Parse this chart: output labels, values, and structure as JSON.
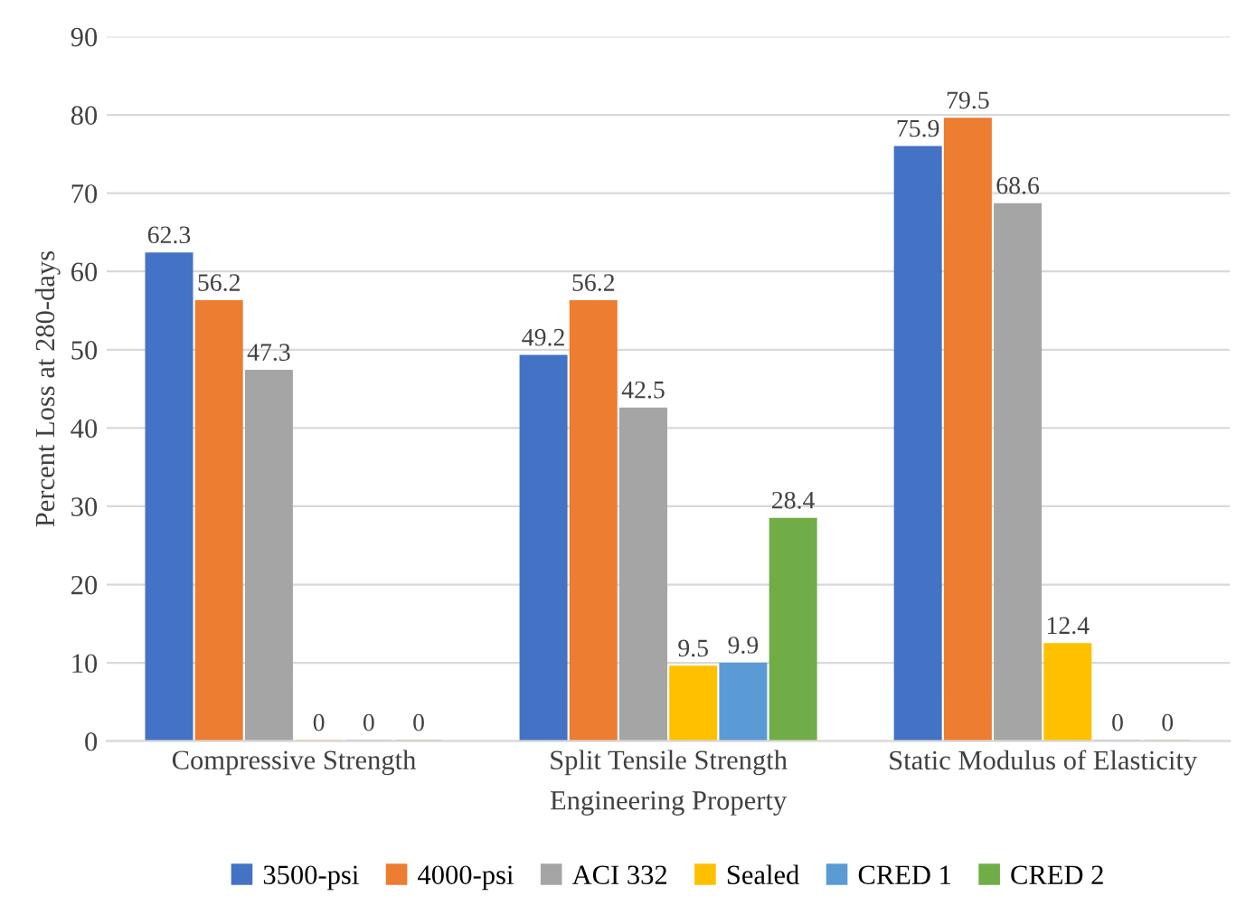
{
  "chart_data": {
    "type": "bar",
    "xlabel": "Engineering Property",
    "ylabel": "Percent Loss at 280-days",
    "categories": [
      "Compressive Strength",
      "Split Tensile Strength",
      "Static Modulus of Elasticity"
    ],
    "series": [
      {
        "name": "3500-psi",
        "color": "#4472c4",
        "values": [
          62.3,
          49.2,
          75.9
        ]
      },
      {
        "name": "4000-psi",
        "color": "#ed7d31",
        "values": [
          56.2,
          56.2,
          79.5
        ]
      },
      {
        "name": "ACI 332",
        "color": "#a5a5a5",
        "values": [
          47.3,
          42.5,
          68.6
        ]
      },
      {
        "name": "Sealed",
        "color": "#ffc000",
        "values": [
          0,
          9.5,
          12.4
        ]
      },
      {
        "name": "CRED 1",
        "color": "#5b9bd5",
        "values": [
          0,
          9.9,
          0
        ]
      },
      {
        "name": "CRED 2",
        "color": "#70ad47",
        "values": [
          0,
          28.4,
          0
        ]
      }
    ],
    "ylim": [
      0,
      90
    ],
    "yticks": [
      0,
      10,
      20,
      30,
      40,
      50,
      60,
      70,
      80,
      90
    ],
    "grid": "y",
    "legend": "bottom",
    "data_labels": true
  }
}
